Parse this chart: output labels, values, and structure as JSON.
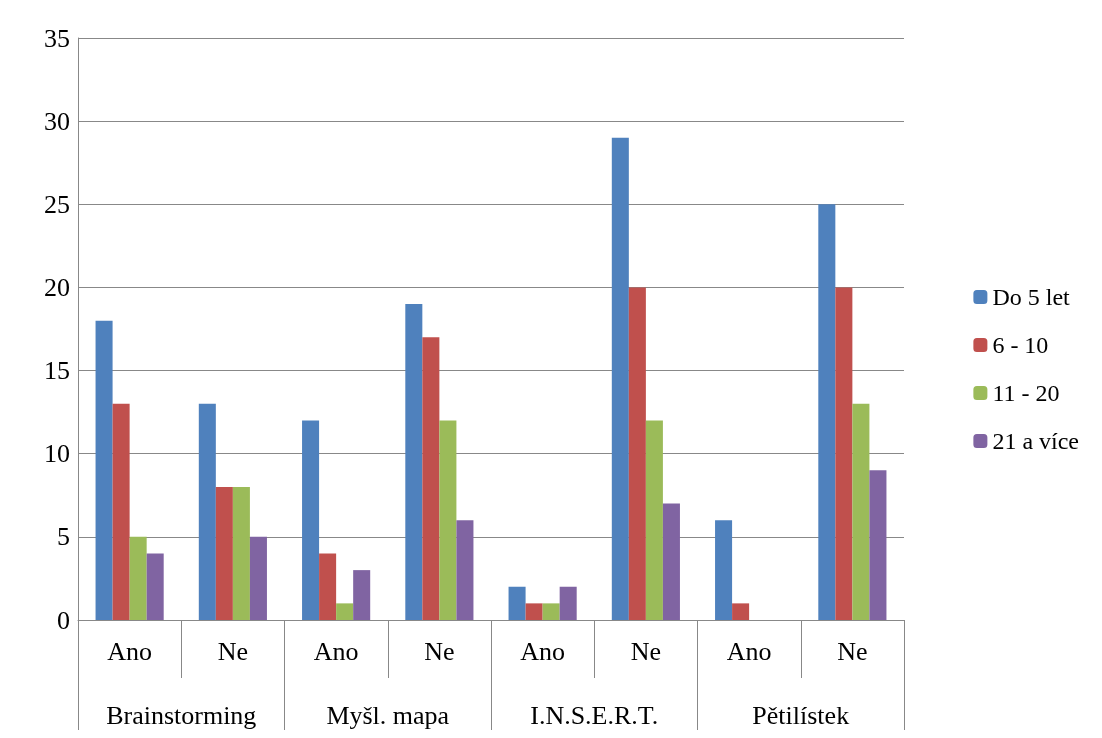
{
  "chart_data": {
    "type": "bar",
    "categories": [
      "Ano",
      "Ne",
      "Ano",
      "Ne",
      "Ano",
      "Ne",
      "Ano",
      "Ne"
    ],
    "annotations": [
      "Brainstorming",
      "Myšl. mapa",
      "I.N.S.E.R.T.",
      "Pětilístek"
    ],
    "series": [
      {
        "name": "Do 5 let",
        "color": "#4f81bd",
        "values": [
          18,
          13,
          12,
          19,
          2,
          29,
          6,
          25
        ]
      },
      {
        "name": "6 - 10",
        "color": "#c0504d",
        "values": [
          13,
          8,
          4,
          17,
          1,
          20,
          1,
          20
        ]
      },
      {
        "name": "11 - 20",
        "color": "#9bbb59",
        "values": [
          5,
          8,
          1,
          12,
          1,
          12,
          0,
          13
        ]
      },
      {
        "name": "21 a více",
        "color": "#8064a2",
        "values": [
          4,
          5,
          3,
          6,
          2,
          7,
          0,
          9
        ]
      }
    ],
    "ylim": [
      0,
      35
    ],
    "yticks": [
      0,
      5,
      10,
      15,
      20,
      25,
      30,
      35
    ],
    "grid": "y",
    "legend": "right"
  }
}
